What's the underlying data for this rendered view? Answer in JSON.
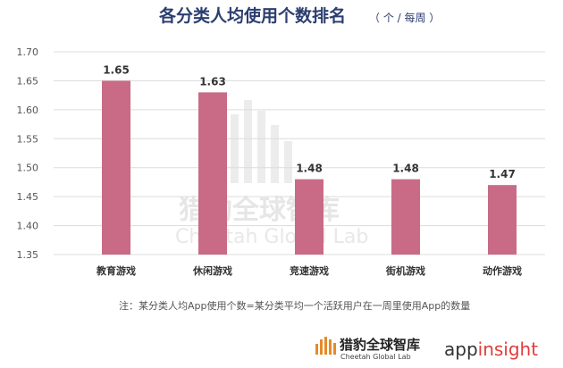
{
  "chart_data": {
    "type": "bar",
    "title": "各分类人均使用个数排名",
    "unit": "（ 个 / 每周 ）",
    "categories": [
      "教育游戏",
      "休闲游戏",
      "竞速游戏",
      "街机游戏",
      "动作游戏"
    ],
    "values": [
      1.65,
      1.63,
      1.48,
      1.48,
      1.47
    ],
    "data_labels": [
      "1.65",
      "1.63",
      "1.48",
      "1.48",
      "1.47"
    ],
    "ylim": [
      1.35,
      1.7
    ],
    "yticks": [
      "1.35",
      "1.40",
      "1.45",
      "1.50",
      "1.55",
      "1.60",
      "1.65",
      "1.70"
    ],
    "grid": true,
    "bar_color": "#c96b86",
    "note": "注：某分类人均App使用个数=某分类平均一个活跃用户在一周里使用App的数量"
  },
  "watermark": {
    "cn": "猎豹全球智库",
    "en": "Cheetah Global Lab"
  },
  "branding": {
    "cheetah_cn": "猎豹全球智库",
    "cheetah_en": "Cheetah Global Lab",
    "appinsight_pre": "app",
    "appinsight_post": "insight",
    "appinsight_accent": "#e23b3b"
  }
}
